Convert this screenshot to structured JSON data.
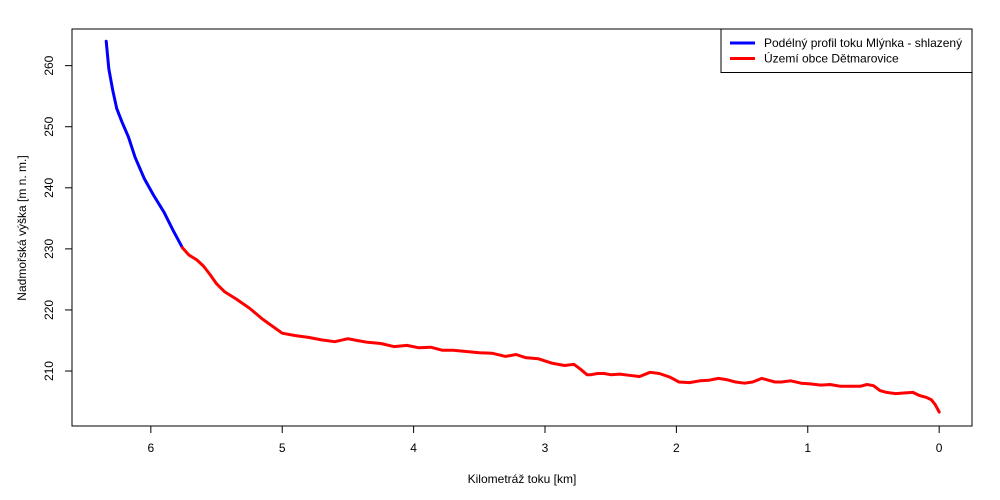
{
  "chart_data": {
    "type": "line",
    "xlabel": "Kilometráž toku [km]",
    "ylabel": "Nadmořská výška [m n. m.]",
    "x_reversed": true,
    "xlim": [
      -0.25,
      6.6
    ],
    "ylim": [
      201,
      266
    ],
    "x_ticks": [
      6,
      5,
      4,
      3,
      2,
      1,
      0
    ],
    "y_ticks": [
      210,
      220,
      230,
      240,
      250,
      260
    ],
    "grid": false,
    "legend_position": "top-right",
    "series": [
      {
        "name": "Podélný profil toku Mlýnka - shlazený",
        "color": "#0000ff",
        "x": [
          6.34,
          6.32,
          6.29,
          6.26,
          6.22,
          6.17,
          6.12,
          6.05,
          5.98,
          5.9,
          5.83,
          5.76
        ],
        "y": [
          264.0,
          259.5,
          256.0,
          253.0,
          250.8,
          248.3,
          245.0,
          241.5,
          238.8,
          236.0,
          233.0,
          230.2
        ]
      },
      {
        "name": "Území obce Dětmarovice",
        "color": "#ff0000",
        "x": [
          5.76,
          5.71,
          5.65,
          5.6,
          5.55,
          5.5,
          5.44,
          5.35,
          5.25,
          5.15,
          5.0,
          4.9,
          4.8,
          4.7,
          4.6,
          4.5,
          4.43,
          4.35,
          4.25,
          4.15,
          4.05,
          3.96,
          3.87,
          3.78,
          3.7,
          3.6,
          3.5,
          3.4,
          3.3,
          3.22,
          3.15,
          3.05,
          2.95,
          2.85,
          2.78,
          2.73,
          2.68,
          2.65,
          2.6,
          2.55,
          2.5,
          2.43,
          2.36,
          2.28,
          2.2,
          2.13,
          2.05,
          1.98,
          1.9,
          1.82,
          1.75,
          1.68,
          1.62,
          1.55,
          1.48,
          1.42,
          1.35,
          1.3,
          1.25,
          1.2,
          1.13,
          1.05,
          0.98,
          0.9,
          0.83,
          0.75,
          0.67,
          0.6,
          0.55,
          0.5,
          0.45,
          0.4,
          0.33,
          0.27,
          0.2,
          0.15,
          0.1,
          0.06,
          0.03,
          0.0
        ],
        "y": [
          230.2,
          229.0,
          228.2,
          227.2,
          225.8,
          224.3,
          223.0,
          221.8,
          220.3,
          218.5,
          216.2,
          215.8,
          215.5,
          215.1,
          214.8,
          215.3,
          215.0,
          214.7,
          214.5,
          214.0,
          214.2,
          213.8,
          213.9,
          213.4,
          213.4,
          213.2,
          213.0,
          212.9,
          212.4,
          212.7,
          212.2,
          212.0,
          211.3,
          210.9,
          211.1,
          210.3,
          209.4,
          209.4,
          209.6,
          209.6,
          209.4,
          209.5,
          209.3,
          209.1,
          209.8,
          209.6,
          209.0,
          208.2,
          208.1,
          208.4,
          208.5,
          208.8,
          208.6,
          208.2,
          208.0,
          208.2,
          208.8,
          208.5,
          208.2,
          208.2,
          208.4,
          208.0,
          207.9,
          207.7,
          207.8,
          207.5,
          207.5,
          207.5,
          207.8,
          207.6,
          206.8,
          206.5,
          206.3,
          206.4,
          206.5,
          206.0,
          205.7,
          205.3,
          204.5,
          203.3
        ]
      }
    ]
  }
}
